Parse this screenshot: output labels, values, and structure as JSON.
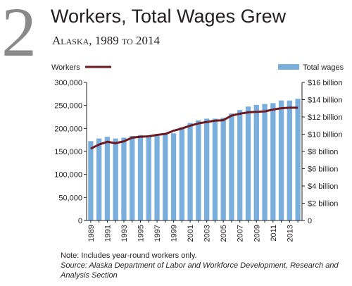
{
  "header": {
    "figure_number": "2",
    "title": "Workers, Total Wages Grew",
    "subtitle": "Alaska, 1989 to 2014"
  },
  "chart_data": {
    "type": "bar",
    "x": [
      1989,
      1990,
      1991,
      1992,
      1993,
      1994,
      1995,
      1996,
      1997,
      1998,
      1999,
      2000,
      2001,
      2002,
      2003,
      2004,
      2005,
      2006,
      2007,
      2008,
      2009,
      2010,
      2011,
      2012,
      2013,
      2014
    ],
    "x_tick_labels": [
      "1989",
      "1991",
      "1993",
      "1995",
      "1997",
      "1999",
      "2001",
      "2003",
      "2005",
      "2007",
      "2009",
      "2011",
      "2013"
    ],
    "series": [
      {
        "name": "Total wages",
        "type": "bar",
        "axis": "right",
        "color": "#7aaedc",
        "values": [
          9.2,
          9.5,
          9.7,
          9.5,
          9.6,
          9.8,
          9.9,
          9.7,
          9.8,
          10.1,
          10.1,
          10.8,
          11.3,
          11.6,
          11.8,
          11.8,
          11.9,
          12.4,
          12.8,
          13.2,
          13.4,
          13.5,
          13.6,
          13.9,
          13.9,
          14.1
        ]
      },
      {
        "name": "Workers",
        "type": "line",
        "axis": "left",
        "color": "#6b1a22",
        "values": [
          156000,
          165000,
          171000,
          168000,
          172000,
          180000,
          182000,
          183000,
          186000,
          188000,
          195000,
          200000,
          206000,
          211000,
          214000,
          217000,
          218000,
          228000,
          232000,
          235000,
          236000,
          237000,
          241000,
          244000,
          245000,
          245000
        ]
      }
    ],
    "y_left": {
      "range": [
        0,
        300000
      ],
      "tick_labels": [
        "0",
        "50,000",
        "100,000",
        "150,000",
        "200,000",
        "250,000",
        "300,000"
      ]
    },
    "y_right": {
      "range": [
        0,
        16
      ],
      "tick_labels": [
        "0",
        "$2 billion",
        "$4 billion",
        "$6 billion",
        "$8 billion",
        "$10 billion",
        "$12 billion",
        "$14 billion",
        "$16 billion"
      ]
    },
    "legend": {
      "workers_label": "Workers",
      "wages_label": "Total wages"
    },
    "grid": false
  },
  "footer": {
    "note": "Note: Includes year-round workers only.",
    "source": "Source: Alaska Department of Labor and Workforce Development, Research and Analysis Section"
  }
}
